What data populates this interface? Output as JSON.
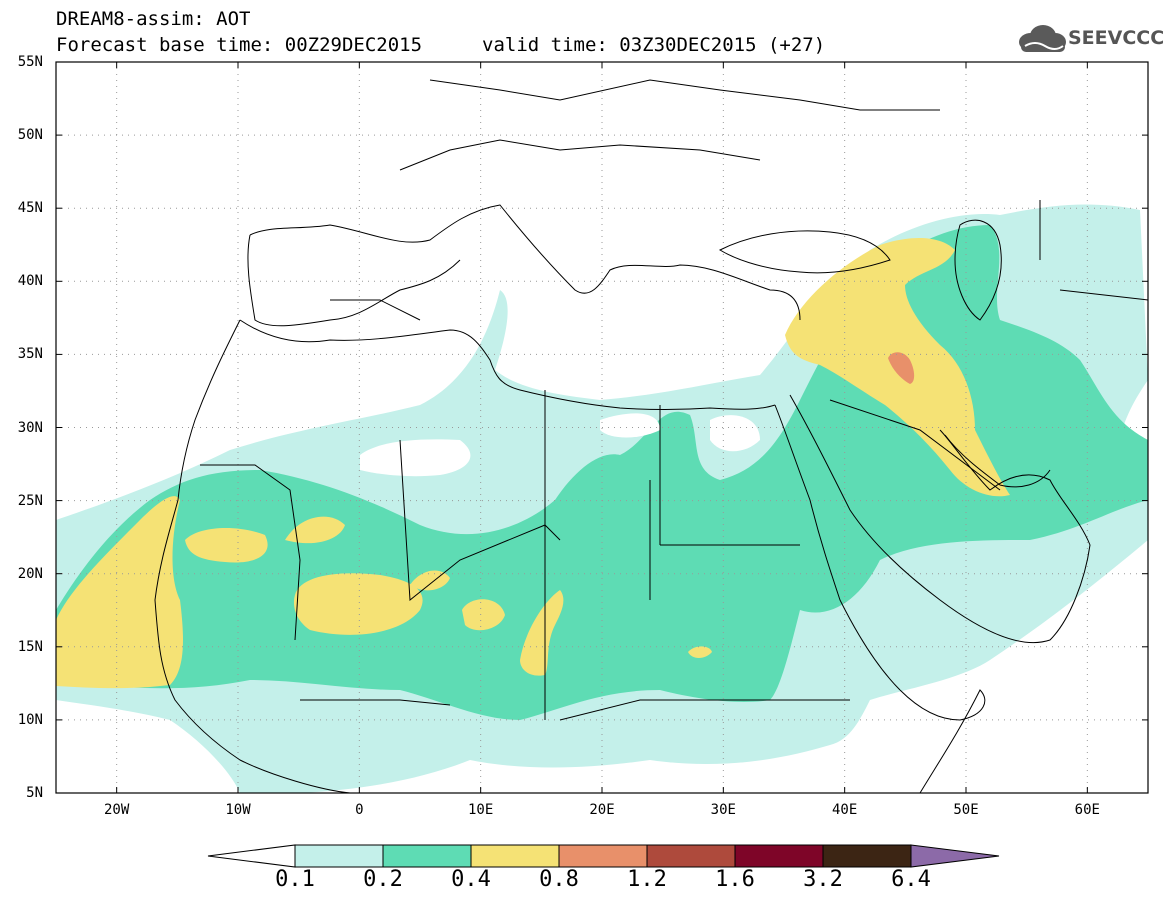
{
  "header": {
    "title": "DREAM8-assim: AOT",
    "base_time": "Forecast base time: 00Z29DEC2015",
    "valid_time": "valid time: 03Z30DEC2015 (+27)",
    "logo_text": "SEEVCCC"
  },
  "map": {
    "lat_labels": [
      "55N",
      "50N",
      "45N",
      "40N",
      "35N",
      "30N",
      "25N",
      "20N",
      "15N",
      "10N",
      "5N"
    ],
    "lon_labels": [
      "20W",
      "10W",
      "0",
      "10E",
      "20E",
      "30E",
      "40E",
      "50E",
      "60E"
    ],
    "lon_range": [
      -25,
      65
    ],
    "lat_range": [
      5,
      55
    ]
  },
  "colorbar": {
    "labels": [
      "0.1",
      "0.2",
      "0.4",
      "0.8",
      "1.2",
      "1.6",
      "3.2",
      "6.4"
    ],
    "colors": [
      "#c4f0ea",
      "#5edcb4",
      "#f5e275",
      "#e8906a",
      "#ae4a3c",
      "#7e0528",
      "#3c2514",
      "#8c6aa8"
    ]
  }
}
